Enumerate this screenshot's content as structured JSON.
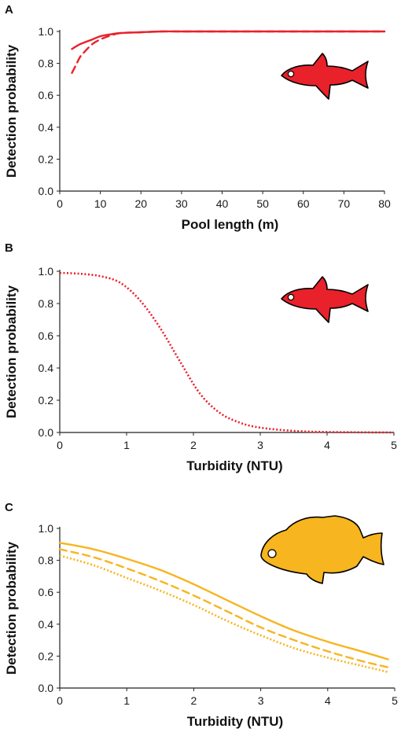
{
  "chart_data": [
    {
      "panel": "A",
      "type": "line",
      "xlabel": "Pool length (m)",
      "ylabel": "Detection probability",
      "xlim": [
        0,
        80
      ],
      "ylim": [
        0,
        1
      ],
      "xticks": [
        "0",
        "10",
        "20",
        "30",
        "40",
        "50",
        "60",
        "70",
        "80"
      ],
      "yticks": [
        "0.0",
        "0.2",
        "0.4",
        "0.6",
        "0.8",
        "1.0"
      ],
      "color": "#e8212b",
      "fish_icon": "minnow-icon",
      "series": [
        {
          "style": "solid",
          "x": [
            3,
            5,
            8,
            10,
            12,
            15,
            20,
            25,
            30,
            40,
            60,
            80
          ],
          "y": [
            0.89,
            0.92,
            0.95,
            0.97,
            0.98,
            0.99,
            0.995,
            1.0,
            1.0,
            1.0,
            1.0,
            1.0
          ]
        },
        {
          "style": "dashed",
          "x": [
            3,
            4,
            5,
            6,
            8,
            10,
            12,
            15,
            20,
            25,
            30,
            40,
            60,
            80
          ],
          "y": [
            0.74,
            0.79,
            0.84,
            0.87,
            0.92,
            0.95,
            0.97,
            0.99,
            0.995,
            1.0,
            1.0,
            1.0,
            1.0,
            1.0
          ]
        }
      ]
    },
    {
      "panel": "B",
      "type": "line",
      "xlabel": "Turbidity (NTU)",
      "ylabel": "Detection probability",
      "xlim": [
        0,
        5
      ],
      "ylim": [
        0,
        1
      ],
      "xticks": [
        "0",
        "1",
        "2",
        "3",
        "4",
        "5"
      ],
      "yticks": [
        "0.0",
        "0.2",
        "0.4",
        "0.6",
        "0.8",
        "1.0"
      ],
      "color": "#e8212b",
      "fish_icon": "minnow-icon",
      "series": [
        {
          "style": "dotted",
          "x": [
            0,
            0.3,
            0.6,
            0.9,
            1.2,
            1.5,
            1.8,
            2.1,
            2.4,
            2.7,
            3.0,
            3.5,
            4.0,
            4.5,
            5.0
          ],
          "y": [
            0.99,
            0.985,
            0.97,
            0.93,
            0.82,
            0.65,
            0.44,
            0.24,
            0.12,
            0.06,
            0.03,
            0.01,
            0.003,
            0.001,
            0.0
          ]
        }
      ]
    },
    {
      "panel": "C",
      "type": "line",
      "xlabel": "Turbidity (NTU)",
      "ylabel": "Detection probability",
      "xlim": [
        0,
        5
      ],
      "ylim": [
        0,
        1
      ],
      "xticks": [
        "0",
        "1",
        "2",
        "3",
        "4",
        "5"
      ],
      "yticks": [
        "0.0",
        "0.2",
        "0.4",
        "0.6",
        "0.8",
        "1.0"
      ],
      "color": "#f7b51f",
      "fish_icon": "cichlid-icon",
      "series": [
        {
          "style": "solid",
          "x": [
            0,
            0.5,
            1,
            1.5,
            2,
            2.5,
            3,
            3.5,
            4,
            4.5,
            4.9
          ],
          "y": [
            0.91,
            0.87,
            0.81,
            0.74,
            0.65,
            0.55,
            0.45,
            0.36,
            0.29,
            0.23,
            0.18
          ]
        },
        {
          "style": "dashed",
          "x": [
            0,
            0.5,
            1,
            1.5,
            2,
            2.5,
            3,
            3.5,
            4,
            4.5,
            4.9
          ],
          "y": [
            0.87,
            0.82,
            0.75,
            0.67,
            0.58,
            0.48,
            0.38,
            0.3,
            0.23,
            0.17,
            0.13
          ]
        },
        {
          "style": "dotted",
          "x": [
            0,
            0.5,
            1,
            1.5,
            2,
            2.5,
            3,
            3.5,
            4,
            4.5,
            4.9
          ],
          "y": [
            0.83,
            0.77,
            0.69,
            0.61,
            0.52,
            0.42,
            0.33,
            0.25,
            0.19,
            0.14,
            0.1
          ]
        }
      ]
    }
  ]
}
